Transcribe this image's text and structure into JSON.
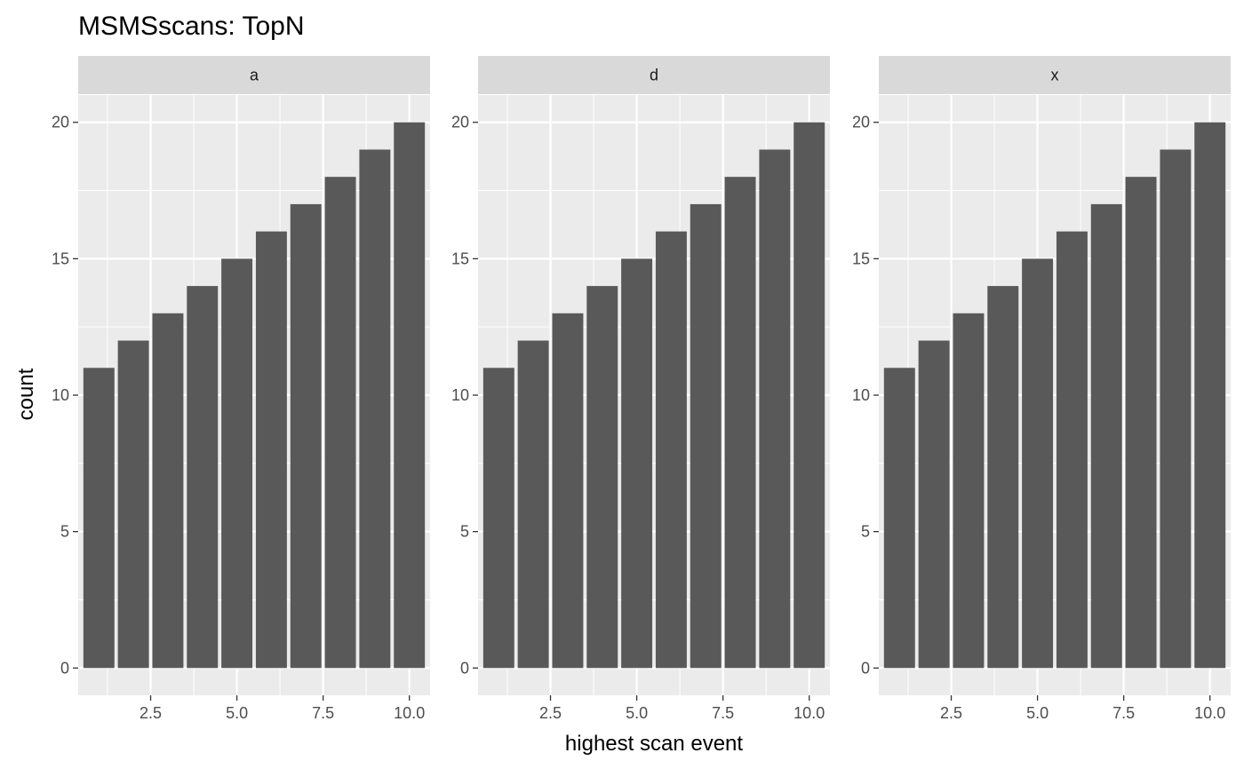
{
  "chart_data": {
    "type": "bar",
    "title": "MSMSscans: TopN",
    "xlabel": "highest scan event",
    "ylabel": "count",
    "xlim": [
      0.4,
      10.6
    ],
    "ylim": [
      -1,
      21
    ],
    "x_ticks": [
      2.5,
      5.0,
      7.5,
      10.0
    ],
    "x_tick_labels": [
      "2.5",
      "5.0",
      "7.5",
      "10.0"
    ],
    "y_ticks": [
      0,
      5,
      10,
      15,
      20
    ],
    "y_tick_labels": [
      "0",
      "5",
      "10",
      "15",
      "20"
    ],
    "grid": true,
    "facets": [
      {
        "label": "a",
        "x": [
          1,
          2,
          3,
          4,
          5,
          6,
          7,
          8,
          9,
          10
        ],
        "values": [
          11,
          12,
          13,
          14,
          15,
          16,
          17,
          18,
          19,
          20
        ]
      },
      {
        "label": "d",
        "x": [
          1,
          2,
          3,
          4,
          5,
          6,
          7,
          8,
          9,
          10
        ],
        "values": [
          11,
          12,
          13,
          14,
          15,
          16,
          17,
          18,
          19,
          20
        ]
      },
      {
        "label": "x",
        "x": [
          1,
          2,
          3,
          4,
          5,
          6,
          7,
          8,
          9,
          10
        ],
        "values": [
          11,
          12,
          13,
          14,
          15,
          16,
          17,
          18,
          19,
          20
        ]
      }
    ],
    "colors": {
      "panel_background": "#ebebeb",
      "strip_background": "#d9d9d9",
      "grid_line": "#ffffff",
      "bar_fill": "#595959",
      "tick_color": "#333333"
    }
  }
}
